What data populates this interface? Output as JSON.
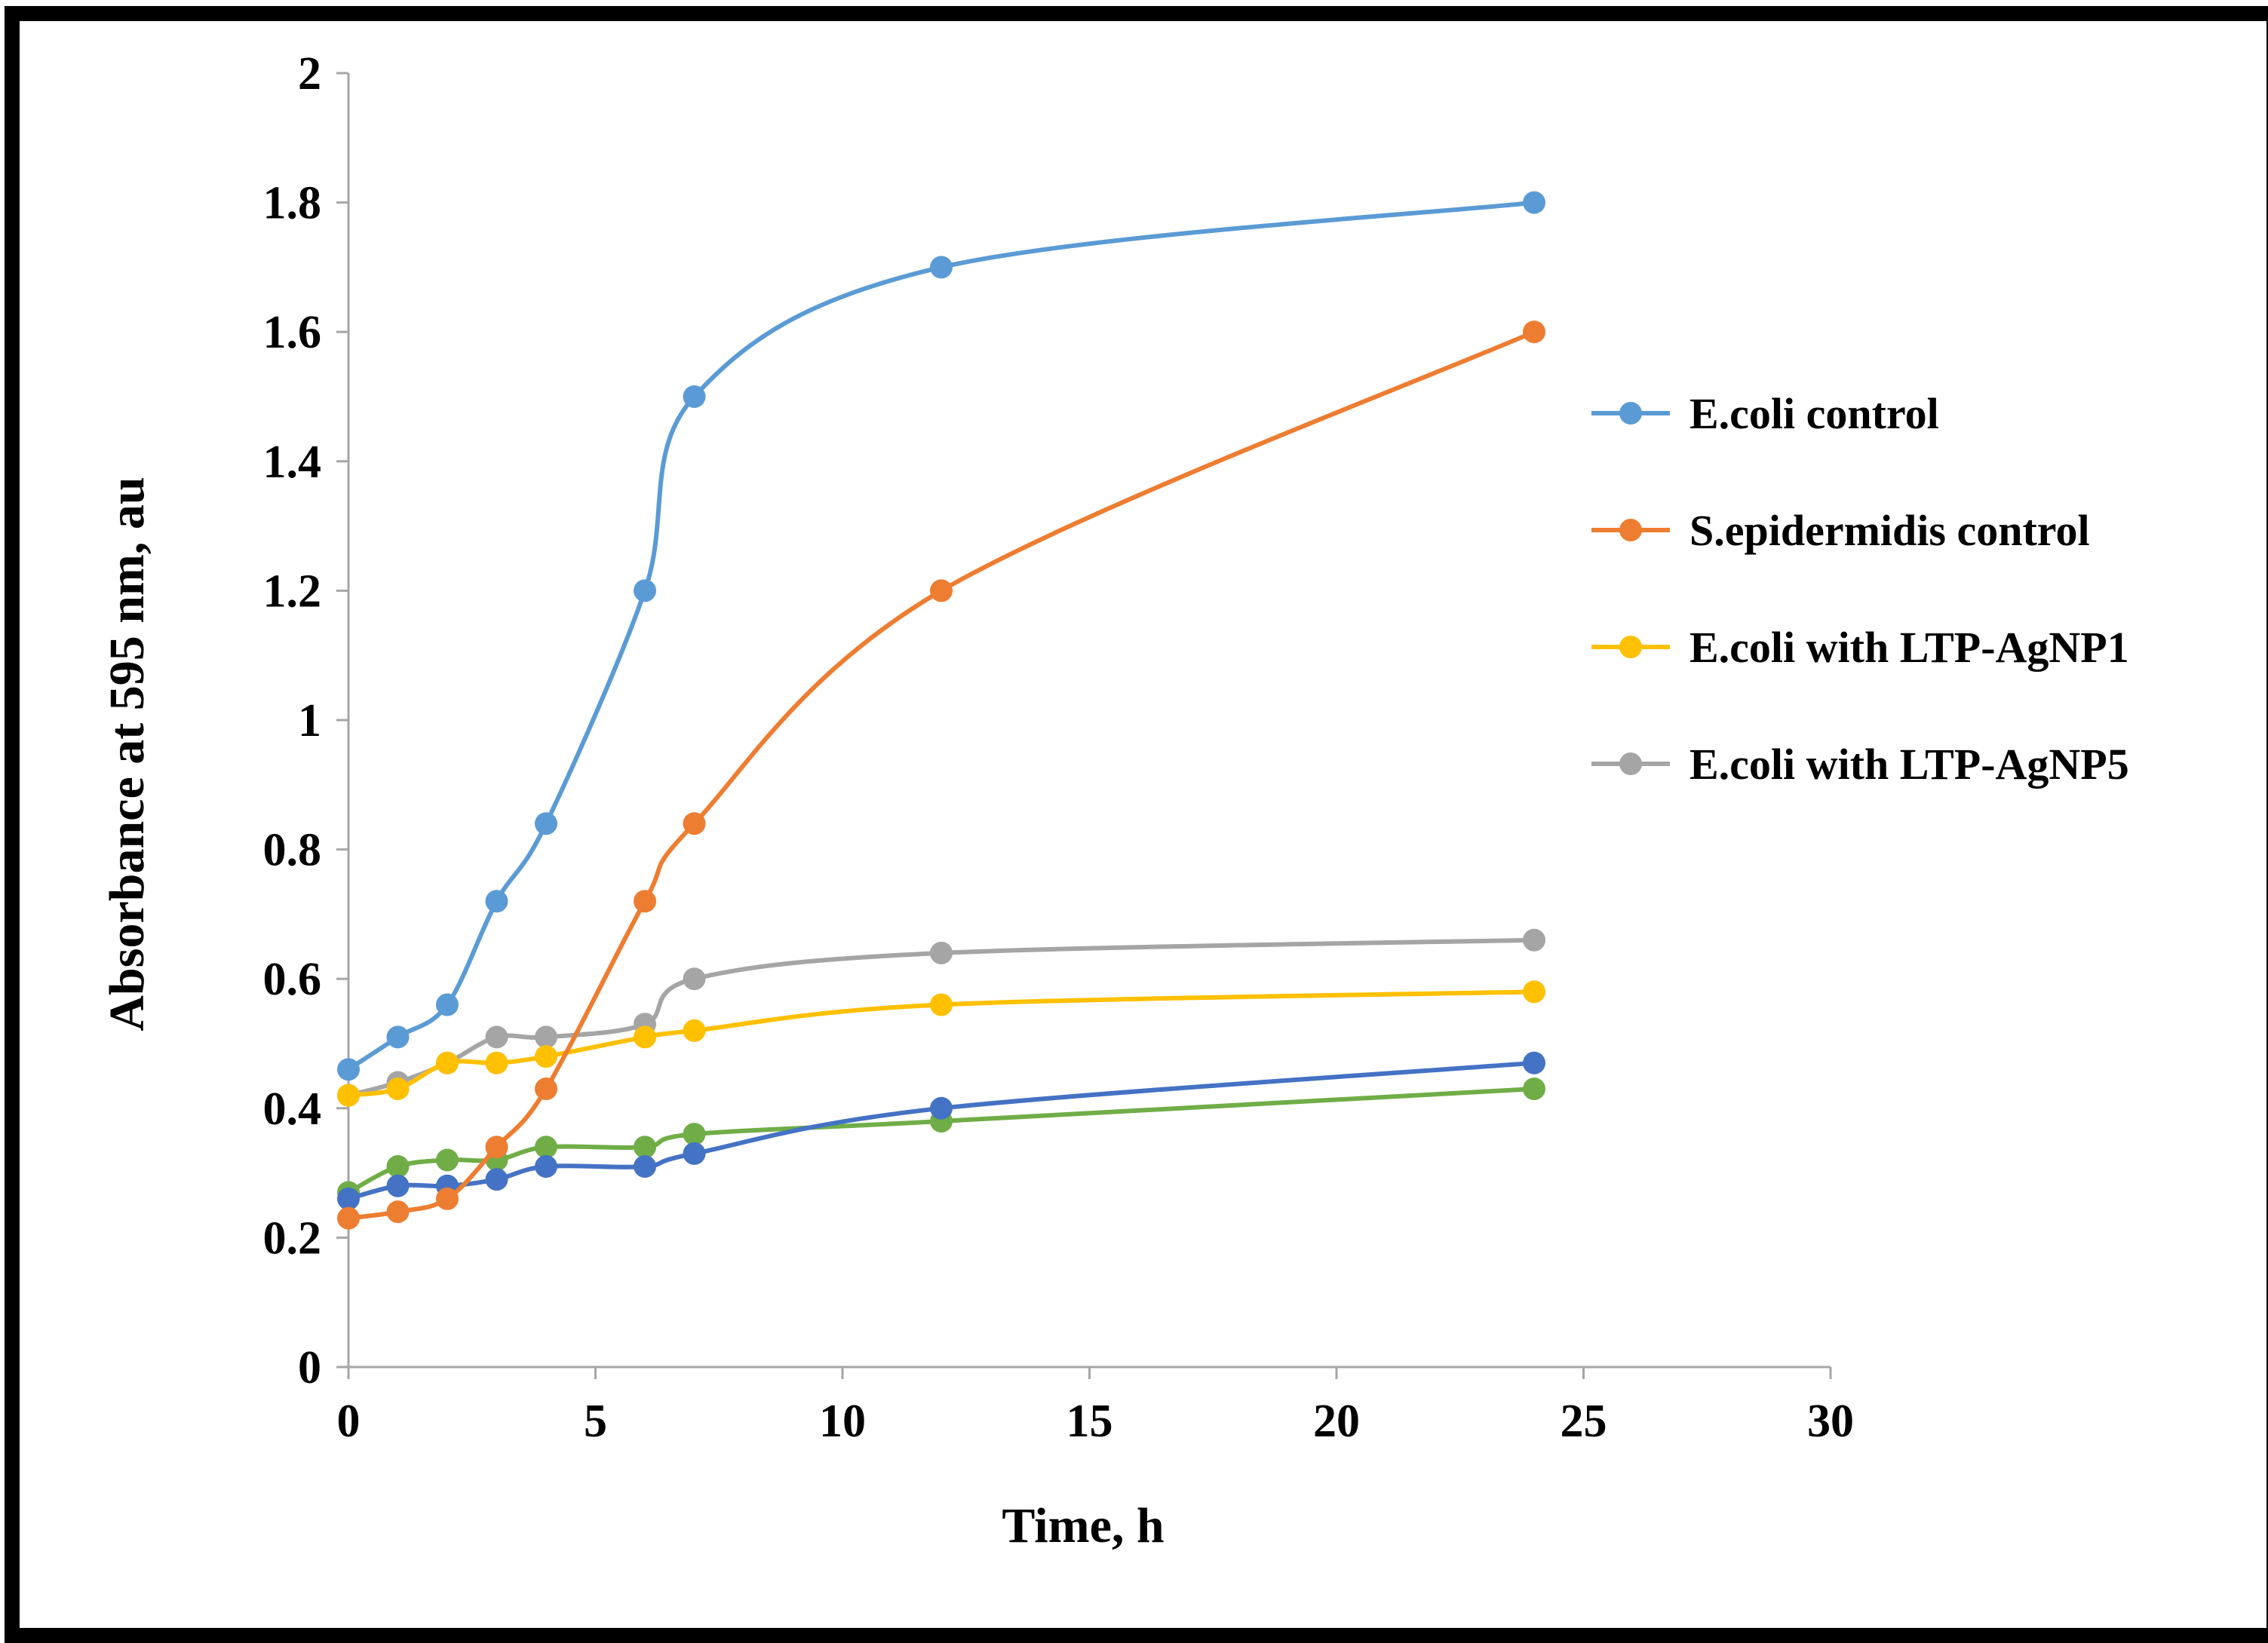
{
  "chart_data": {
    "type": "line",
    "title": "",
    "xlabel": "Time, h",
    "ylabel": "Absorbance at 595 nm, au",
    "xlim": [
      0,
      30
    ],
    "ylim": [
      0,
      2
    ],
    "x_ticks": [
      "0",
      "5",
      "10",
      "15",
      "20",
      "25",
      "30"
    ],
    "y_ticks": [
      "0",
      "0.2",
      "0.4",
      "0.6",
      "0.8",
      "1",
      "1.2",
      "1.4",
      "1.6",
      "1.8",
      "2"
    ],
    "grid": false,
    "legend_position": "right",
    "series": [
      {
        "name": "E.coli control",
        "color": "#5B9BD5",
        "in_legend": true,
        "points": [
          [
            0,
            0.46
          ],
          [
            1,
            0.51
          ],
          [
            2,
            0.56
          ],
          [
            3,
            0.72
          ],
          [
            4,
            0.84
          ],
          [
            6,
            1.2
          ],
          [
            7,
            1.5
          ],
          [
            12,
            1.7
          ],
          [
            24,
            1.8
          ]
        ]
      },
      {
        "name": "S.epidermidis control",
        "color": "#ED7D31",
        "in_legend": true,
        "points": [
          [
            0,
            0.23
          ],
          [
            1,
            0.24
          ],
          [
            2,
            0.26
          ],
          [
            3,
            0.34
          ],
          [
            4,
            0.43
          ],
          [
            6,
            0.72
          ],
          [
            7,
            0.84
          ],
          [
            12,
            1.2
          ],
          [
            24,
            1.6
          ]
        ]
      },
      {
        "name": "E.coli with LTP-AgNP1",
        "color": "#FFC000",
        "in_legend": true,
        "points": [
          [
            0,
            0.42
          ],
          [
            1,
            0.43
          ],
          [
            2,
            0.47
          ],
          [
            3,
            0.47
          ],
          [
            4,
            0.48
          ],
          [
            6,
            0.51
          ],
          [
            7,
            0.52
          ],
          [
            12,
            0.56
          ],
          [
            24,
            0.58
          ]
        ]
      },
      {
        "name": "E.coli with LTP-AgNP5",
        "color": "#A5A5A5",
        "in_legend": true,
        "points": [
          [
            0,
            0.42
          ],
          [
            1,
            0.44
          ],
          [
            2,
            0.47
          ],
          [
            3,
            0.51
          ],
          [
            4,
            0.51
          ],
          [
            6,
            0.53
          ],
          [
            7,
            0.6
          ],
          [
            12,
            0.64
          ],
          [
            24,
            0.66
          ]
        ]
      },
      {
        "name": "",
        "color": "#4472C4",
        "in_legend": false,
        "points": [
          [
            0,
            0.26
          ],
          [
            1,
            0.28
          ],
          [
            2,
            0.28
          ],
          [
            3,
            0.29
          ],
          [
            4,
            0.31
          ],
          [
            6,
            0.31
          ],
          [
            7,
            0.33
          ],
          [
            12,
            0.4
          ],
          [
            24,
            0.47
          ]
        ]
      },
      {
        "name": "",
        "color": "#70AD47",
        "in_legend": false,
        "points": [
          [
            0,
            0.27
          ],
          [
            1,
            0.31
          ],
          [
            2,
            0.32
          ],
          [
            3,
            0.32
          ],
          [
            4,
            0.34
          ],
          [
            6,
            0.34
          ],
          [
            7,
            0.36
          ],
          [
            12,
            0.38
          ],
          [
            24,
            0.43
          ]
        ]
      }
    ]
  }
}
